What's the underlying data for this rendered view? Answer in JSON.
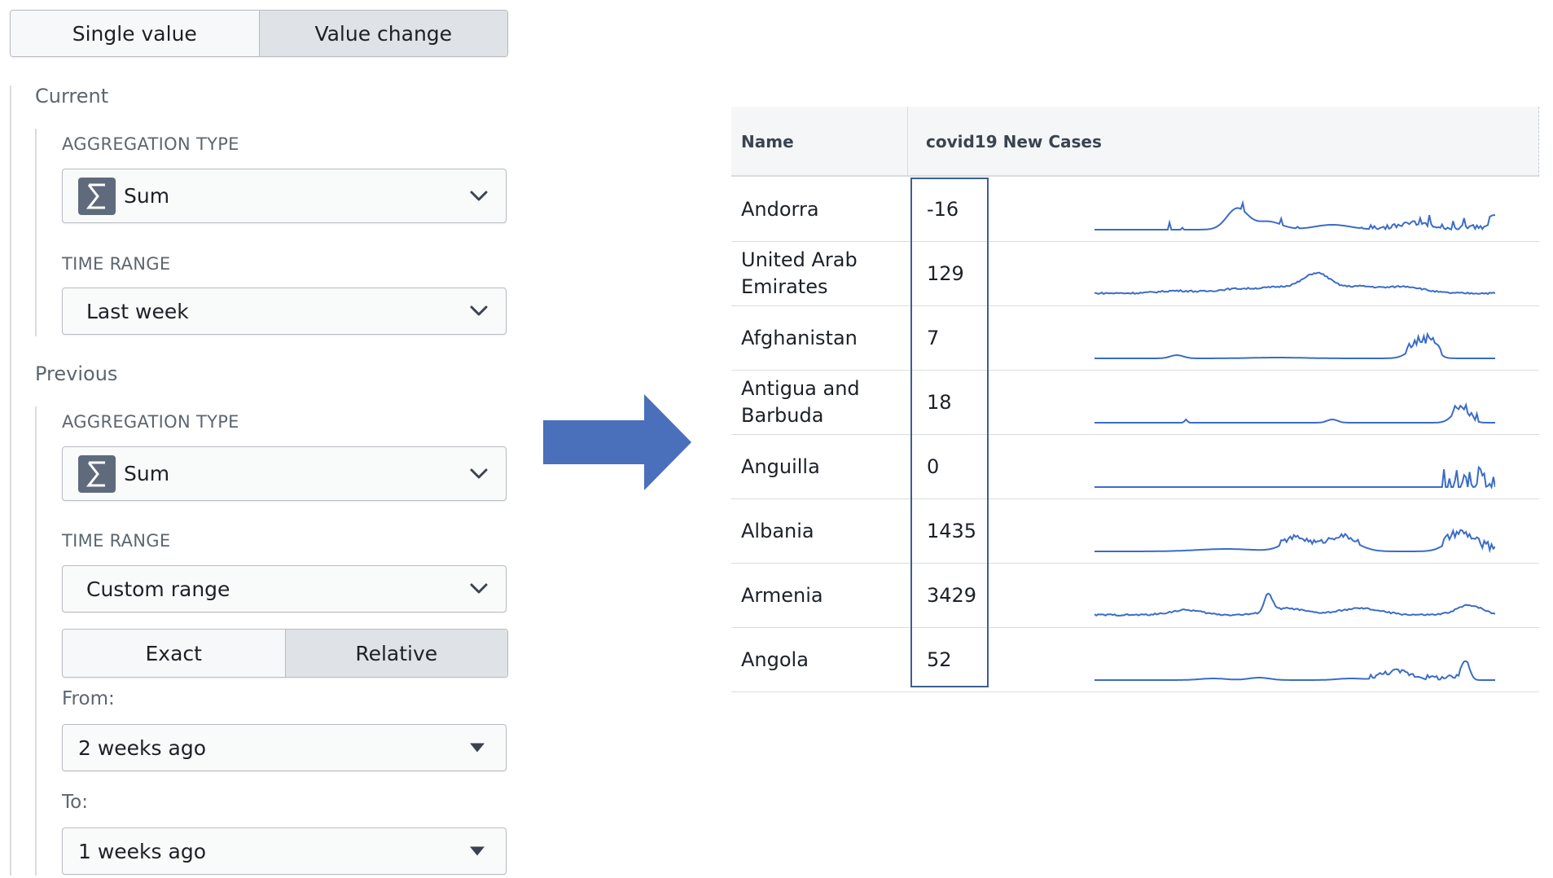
{
  "mode_toggle": {
    "options": [
      "Single value",
      "Value change"
    ],
    "selected": "Value change"
  },
  "current": {
    "title": "Current",
    "aggregation_label": "AGGREGATION TYPE",
    "aggregation_value": "Sum",
    "time_range_label": "TIME RANGE",
    "time_range_value": "Last week"
  },
  "previous": {
    "title": "Previous",
    "aggregation_label": "AGGREGATION TYPE",
    "aggregation_value": "Sum",
    "time_range_label": "TIME RANGE",
    "time_range_value": "Custom range",
    "range_mode": {
      "options": [
        "Exact",
        "Relative"
      ],
      "selected": "Relative"
    },
    "from_label": "From:",
    "from_value": "2 weeks ago",
    "to_label": "To:",
    "to_value": "1 weeks ago"
  },
  "table": {
    "columns": [
      "Name",
      "covid19 New Cases"
    ],
    "rows": [
      {
        "name": "Andorra",
        "value": "-16"
      },
      {
        "name": "United Arab Emirates",
        "value": "129"
      },
      {
        "name": "Afghanistan",
        "value": "7"
      },
      {
        "name": "Antigua and Barbuda",
        "value": "18"
      },
      {
        "name": "Anguilla",
        "value": "0"
      },
      {
        "name": "Albania",
        "value": "1435"
      },
      {
        "name": "Armenia",
        "value": "3429"
      },
      {
        "name": "Angola",
        "value": "52"
      }
    ]
  },
  "colors": {
    "sparkline": "#3b6cc6",
    "arrow": "#4a6fbb",
    "highlight_border": "#3e5f8d"
  }
}
